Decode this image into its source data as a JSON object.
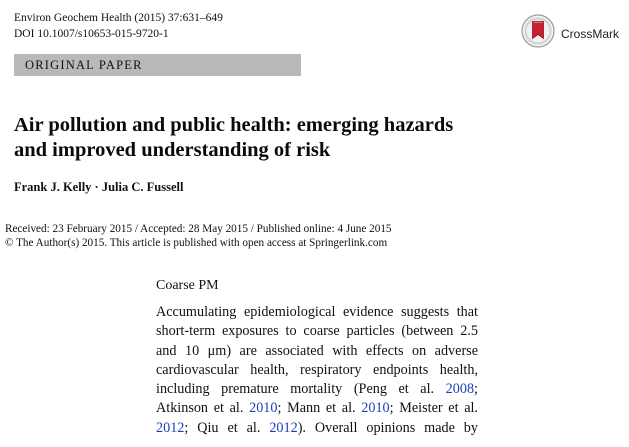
{
  "header": {
    "journal_citation": "Environ Geochem Health (2015) 37:631–649",
    "doi": "DOI 10.1007/s10653-015-9720-1",
    "crossmark_label": "CrossMark"
  },
  "banner": {
    "label": "ORIGINAL PAPER"
  },
  "article": {
    "title_line_1": "Air pollution and public health: emerging hazards",
    "title_line_2": "and improved understanding of risk",
    "authors": "Frank J. Kelly · Julia C. Fussell",
    "dates": "Received: 23 February 2015 / Accepted: 28 May 2015 / Published online: 4 June 2015",
    "copyright": "© The Author(s) 2015. This article is published with open access at Springerlink.com"
  },
  "section": {
    "heading": "Coarse PM",
    "lines": [
      {
        "parts": [
          {
            "text": "Accumulating epidemiological evidence suggests that",
            "link": false
          }
        ]
      },
      {
        "parts": [
          {
            "text": "short-term exposures to coarse particles (between 2.5",
            "link": false
          }
        ]
      },
      {
        "parts": [
          {
            "text": "and 10 μm) are associated with effects on adverse",
            "link": false
          }
        ]
      },
      {
        "parts": [
          {
            "text": "cardiovascular health, respiratory endpoints health,",
            "link": false
          }
        ]
      },
      {
        "parts": [
          {
            "text": "including premature mortality (Peng et al. ",
            "link": false
          },
          {
            "text": "2008",
            "link": true
          },
          {
            "text": ";",
            "link": false
          }
        ]
      },
      {
        "parts": [
          {
            "text": "Atkinson et al. ",
            "link": false
          },
          {
            "text": "2010",
            "link": true
          },
          {
            "text": "; Mann et al. ",
            "link": false
          },
          {
            "text": "2010",
            "link": true
          },
          {
            "text": "; Meister et al.",
            "link": false
          }
        ]
      },
      {
        "parts": [
          {
            "text": "2012",
            "link": true
          },
          {
            "text": "; Qiu et al. ",
            "link": false
          },
          {
            "text": "2012",
            "link": true
          },
          {
            "text": "). Overall opinions made by",
            "link": false
          }
        ]
      }
    ]
  },
  "colors": {
    "link": "#1a3fb8",
    "banner": "#b9b9b9",
    "crossmark_red": "#c8202f"
  }
}
